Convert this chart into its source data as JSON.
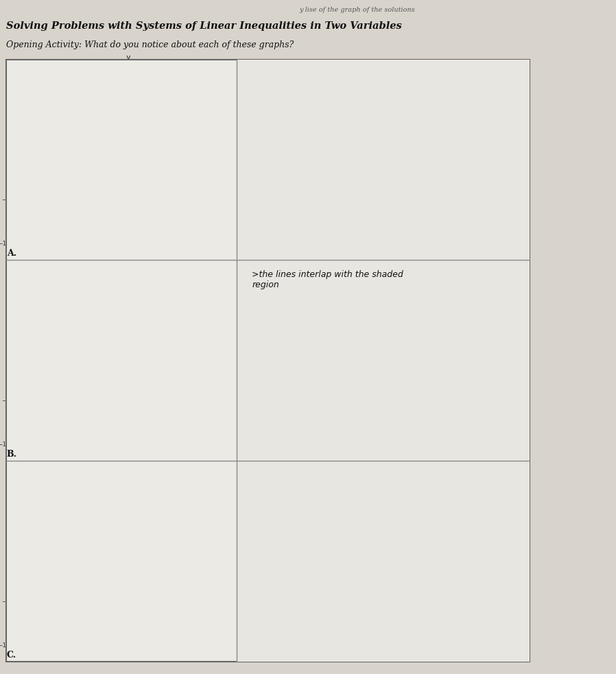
{
  "title_top": "y lise of the graph of the solutions",
  "title_main": "Solving Problems with Systems of Linear Inequalities in Two Variables",
  "opening": "Opening Activity: What do you notice about each of these graphs?",
  "paper_color": "#d8d4cc",
  "panel_bg": "#eceae5",
  "graph_bg": "#f2f0eb",
  "border_color": "#777777",
  "shade_gray": "#888888",
  "shade_alpha": 0.75,
  "hatch_color": "#555555",
  "annotation_text": ">the lines interlap with the shaded\nregion"
}
